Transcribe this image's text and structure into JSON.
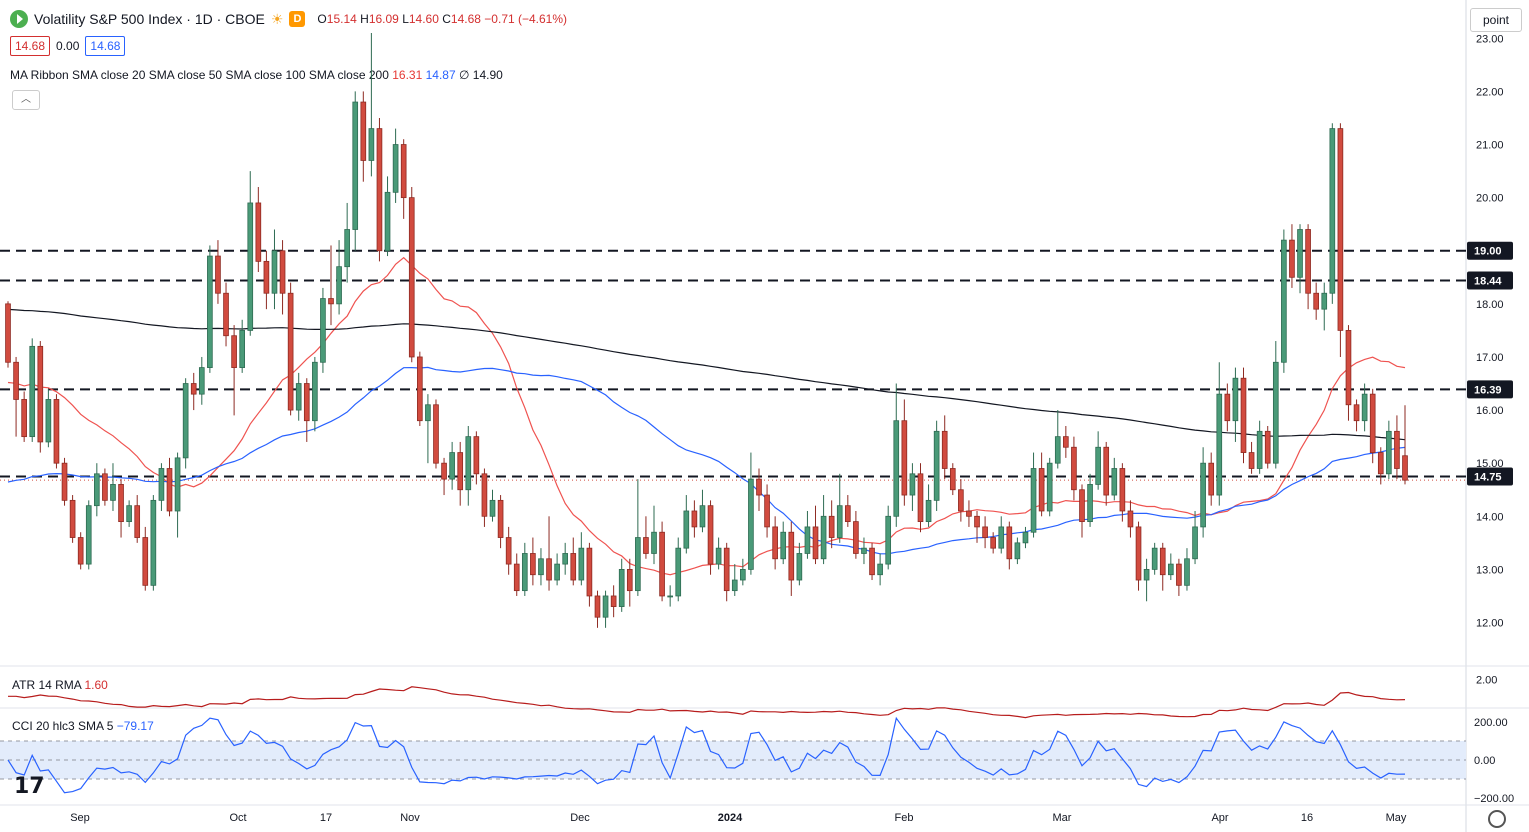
{
  "header": {
    "title": "Volatility S&P 500 Index · 1D · CBOE",
    "badge": "D",
    "o_label": "O",
    "o": "15.14",
    "h_label": "H",
    "h": "16.09",
    "l_label": "L",
    "l": "14.60",
    "c_label": "C",
    "c": "14.68",
    "change": "−0.71 (−4.61%)"
  },
  "price_boxes": {
    "bid": "14.68",
    "spread": "0.00",
    "ask": "14.68"
  },
  "ma_ribbon": {
    "label": "MA Ribbon SMA close 20 SMA close 50 SMA close 100 SMA close 200",
    "v1": "16.31",
    "v2": "14.87",
    "v3": "∅",
    "v4": "14.90"
  },
  "atr": {
    "label": "ATR 14 RMA",
    "value": "1.60"
  },
  "cci": {
    "label": "CCI 20 hlc3 SMA 5",
    "value": "−79.17"
  },
  "toolbar": {
    "point_label": "point"
  },
  "colors": {
    "up": "#4a9a78",
    "down": "#d14b3f",
    "sma20": "#ef5350",
    "sma50": "#2962ff",
    "sma200": "#131722",
    "atr": "#b71c1c",
    "cci": "#2962ff",
    "cci_band": "#e3ecfb"
  },
  "chart_data": {
    "type": "candlestick",
    "price_axis": {
      "ticks": [
        "23.00",
        "22.00",
        "21.00",
        "20.00",
        "19.00",
        "18.00",
        "17.00",
        "16.00",
        "15.00",
        "14.00",
        "13.00",
        "12.00"
      ],
      "ylim": [
        11.2,
        23.1
      ]
    },
    "x_labels": [
      "Sep",
      "Oct",
      "17",
      "Nov",
      "Dec",
      "2024",
      "Feb",
      "Mar",
      "Apr",
      "16",
      "May"
    ],
    "horizontal_levels": [
      "19.00",
      "18.44",
      "16.39",
      "14.75"
    ],
    "last_price": 14.68,
    "candles": [
      [
        18.0,
        16.9,
        18.05,
        16.8
      ],
      [
        16.9,
        16.2,
        17.0,
        15.5
      ],
      [
        16.2,
        15.5,
        16.35,
        15.4
      ],
      [
        15.5,
        17.2,
        17.35,
        15.4
      ],
      [
        17.2,
        15.4,
        17.3,
        15.2
      ],
      [
        15.4,
        16.2,
        16.4,
        15.3
      ],
      [
        16.2,
        15.0,
        16.3,
        14.9
      ],
      [
        15.0,
        14.3,
        15.1,
        14.2
      ],
      [
        14.3,
        13.6,
        14.4,
        13.5
      ],
      [
        13.6,
        13.1,
        13.7,
        13.0
      ],
      [
        13.1,
        14.2,
        14.3,
        13.0
      ],
      [
        14.2,
        14.8,
        15.0,
        14.0
      ],
      [
        14.8,
        14.3,
        14.9,
        14.2
      ],
      [
        14.3,
        14.6,
        15.0,
        14.1
      ],
      [
        14.6,
        13.9,
        14.7,
        13.6
      ],
      [
        13.9,
        14.2,
        14.3,
        13.8
      ],
      [
        14.2,
        13.6,
        14.4,
        13.5
      ],
      [
        13.6,
        12.7,
        13.8,
        12.6
      ],
      [
        12.7,
        14.3,
        14.4,
        12.6
      ],
      [
        14.3,
        14.9,
        15.0,
        14.1
      ],
      [
        14.9,
        14.1,
        15.1,
        14.0
      ],
      [
        14.1,
        15.1,
        15.2,
        13.6
      ],
      [
        15.1,
        16.5,
        16.6,
        14.9
      ],
      [
        16.5,
        16.3,
        16.7,
        16.0
      ],
      [
        16.3,
        16.8,
        17.0,
        16.1
      ],
      [
        16.8,
        18.9,
        19.1,
        16.7
      ],
      [
        18.9,
        18.2,
        19.2,
        18.0
      ],
      [
        18.2,
        17.4,
        18.4,
        17.2
      ],
      [
        17.4,
        16.8,
        17.6,
        15.9
      ],
      [
        16.8,
        17.5,
        17.7,
        16.7
      ],
      [
        17.5,
        19.9,
        20.5,
        17.4
      ],
      [
        19.9,
        18.8,
        20.2,
        18.6
      ],
      [
        18.8,
        18.2,
        19.0,
        17.9
      ],
      [
        18.2,
        19.0,
        19.4,
        17.9
      ],
      [
        19.0,
        18.2,
        19.2,
        17.8
      ],
      [
        18.2,
        16.0,
        18.4,
        15.9
      ],
      [
        16.0,
        16.5,
        16.7,
        15.8
      ],
      [
        16.5,
        15.8,
        16.6,
        15.4
      ],
      [
        15.8,
        16.9,
        17.0,
        15.6
      ],
      [
        16.9,
        18.1,
        18.3,
        16.7
      ],
      [
        18.1,
        18.0,
        19.1,
        17.6
      ],
      [
        18.0,
        18.7,
        19.2,
        17.8
      ],
      [
        18.7,
        19.4,
        19.9,
        18.4
      ],
      [
        19.4,
        21.8,
        22.0,
        19.0
      ],
      [
        21.8,
        20.7,
        22.0,
        20.3
      ],
      [
        20.7,
        21.3,
        23.1,
        20.4
      ],
      [
        21.3,
        19.0,
        21.5,
        18.8
      ],
      [
        19.0,
        20.1,
        20.4,
        18.9
      ],
      [
        20.1,
        21.0,
        21.3,
        19.9
      ],
      [
        21.0,
        20.0,
        21.1,
        19.6
      ],
      [
        20.0,
        17.0,
        20.2,
        16.9
      ],
      [
        17.0,
        15.8,
        17.1,
        15.7
      ],
      [
        15.8,
        16.1,
        16.3,
        15.0
      ],
      [
        16.1,
        15.0,
        16.2,
        14.9
      ],
      [
        15.0,
        14.7,
        15.1,
        14.4
      ],
      [
        14.7,
        15.2,
        15.4,
        14.5
      ],
      [
        15.2,
        14.5,
        15.4,
        14.2
      ],
      [
        14.5,
        15.5,
        15.7,
        14.2
      ],
      [
        15.5,
        14.8,
        15.6,
        14.6
      ],
      [
        14.8,
        14.0,
        14.9,
        13.8
      ],
      [
        14.0,
        14.3,
        14.5,
        13.9
      ],
      [
        14.3,
        13.6,
        14.4,
        13.4
      ],
      [
        13.6,
        13.1,
        13.8,
        12.9
      ],
      [
        13.1,
        12.6,
        13.3,
        12.5
      ],
      [
        12.6,
        13.3,
        13.5,
        12.5
      ],
      [
        13.3,
        12.9,
        13.6,
        12.7
      ],
      [
        12.9,
        13.2,
        13.4,
        12.7
      ],
      [
        13.2,
        12.8,
        14.0,
        12.6
      ],
      [
        12.8,
        13.1,
        13.3,
        12.7
      ],
      [
        13.1,
        13.3,
        13.5,
        12.9
      ],
      [
        13.3,
        12.8,
        13.6,
        12.7
      ],
      [
        12.8,
        13.4,
        13.7,
        12.7
      ],
      [
        13.4,
        12.5,
        13.5,
        12.3
      ],
      [
        12.5,
        12.1,
        12.6,
        11.9
      ],
      [
        12.1,
        12.5,
        12.6,
        11.9
      ],
      [
        12.5,
        12.3,
        12.7,
        12.1
      ],
      [
        12.3,
        13.0,
        13.2,
        12.2
      ],
      [
        13.0,
        12.6,
        13.2,
        12.3
      ],
      [
        12.6,
        13.6,
        14.7,
        12.5
      ],
      [
        13.6,
        13.3,
        14.0,
        13.2
      ],
      [
        13.3,
        13.7,
        14.2,
        13.1
      ],
      [
        13.7,
        12.5,
        13.9,
        12.4
      ],
      [
        12.5,
        12.5,
        12.7,
        12.3
      ],
      [
        12.5,
        13.4,
        13.6,
        12.4
      ],
      [
        13.4,
        14.1,
        14.4,
        13.3
      ],
      [
        14.1,
        13.8,
        14.3,
        13.6
      ],
      [
        13.8,
        14.2,
        14.5,
        13.7
      ],
      [
        14.2,
        13.1,
        14.3,
        12.9
      ],
      [
        13.1,
        13.4,
        13.6,
        13.0
      ],
      [
        13.4,
        12.6,
        13.5,
        12.4
      ],
      [
        12.6,
        12.8,
        13.1,
        12.5
      ],
      [
        12.8,
        13.0,
        13.2,
        12.7
      ],
      [
        13.0,
        14.7,
        15.2,
        12.9
      ],
      [
        14.7,
        14.4,
        14.9,
        14.1
      ],
      [
        14.4,
        13.8,
        14.6,
        13.6
      ],
      [
        13.8,
        13.2,
        14.0,
        13.0
      ],
      [
        13.2,
        13.7,
        13.9,
        13.1
      ],
      [
        13.7,
        12.8,
        13.9,
        12.5
      ],
      [
        12.8,
        13.3,
        13.5,
        12.7
      ],
      [
        13.3,
        13.8,
        14.1,
        13.2
      ],
      [
        13.8,
        13.2,
        14.2,
        13.1
      ],
      [
        13.2,
        14.0,
        14.4,
        13.1
      ],
      [
        14.0,
        13.6,
        14.3,
        13.4
      ],
      [
        13.6,
        14.2,
        14.8,
        13.5
      ],
      [
        14.2,
        13.9,
        14.4,
        13.8
      ],
      [
        13.9,
        13.3,
        14.1,
        13.2
      ],
      [
        13.3,
        13.4,
        13.6,
        13.1
      ],
      [
        13.4,
        12.9,
        13.5,
        12.8
      ],
      [
        12.9,
        13.1,
        13.3,
        12.7
      ],
      [
        13.1,
        14.0,
        14.2,
        13.0
      ],
      [
        14.0,
        15.8,
        16.5,
        13.8
      ],
      [
        15.8,
        14.4,
        16.2,
        14.2
      ],
      [
        14.4,
        14.8,
        15.0,
        14.1
      ],
      [
        14.8,
        13.9,
        15.0,
        13.7
      ],
      [
        13.9,
        14.3,
        14.6,
        13.8
      ],
      [
        14.3,
        15.6,
        15.8,
        14.1
      ],
      [
        15.6,
        14.9,
        15.9,
        14.7
      ],
      [
        14.9,
        14.5,
        15.0,
        14.4
      ],
      [
        14.5,
        14.1,
        14.7,
        13.9
      ],
      [
        14.1,
        14.0,
        14.3,
        13.8
      ],
      [
        14.0,
        13.8,
        14.1,
        13.5
      ],
      [
        13.8,
        13.6,
        14.0,
        13.4
      ],
      [
        13.6,
        13.4,
        13.7,
        13.3
      ],
      [
        13.4,
        13.8,
        14.0,
        13.3
      ],
      [
        13.8,
        13.2,
        13.9,
        13.0
      ],
      [
        13.2,
        13.5,
        13.6,
        13.1
      ],
      [
        13.5,
        13.7,
        13.8,
        13.4
      ],
      [
        13.7,
        14.9,
        15.2,
        13.6
      ],
      [
        14.9,
        14.1,
        15.2,
        14.0
      ],
      [
        14.1,
        15.0,
        15.1,
        14.0
      ],
      [
        15.0,
        15.5,
        16.0,
        14.9
      ],
      [
        15.5,
        15.3,
        15.7,
        15.1
      ],
      [
        15.3,
        14.5,
        15.5,
        14.3
      ],
      [
        14.5,
        13.9,
        14.6,
        13.6
      ],
      [
        13.9,
        14.6,
        14.8,
        13.8
      ],
      [
        14.6,
        15.3,
        15.6,
        14.5
      ],
      [
        15.3,
        14.4,
        15.4,
        14.2
      ],
      [
        14.4,
        14.9,
        15.1,
        14.3
      ],
      [
        14.9,
        14.1,
        15.0,
        13.9
      ],
      [
        14.1,
        13.8,
        14.3,
        13.6
      ],
      [
        13.8,
        12.8,
        13.9,
        12.6
      ],
      [
        12.8,
        13.0,
        13.2,
        12.4
      ],
      [
        13.0,
        13.4,
        13.5,
        12.9
      ],
      [
        13.4,
        12.9,
        13.5,
        12.6
      ],
      [
        12.9,
        13.1,
        13.3,
        12.8
      ],
      [
        13.1,
        12.7,
        13.2,
        12.5
      ],
      [
        12.7,
        13.2,
        13.4,
        12.6
      ],
      [
        13.2,
        13.8,
        14.1,
        13.1
      ],
      [
        13.8,
        15.0,
        15.3,
        13.6
      ],
      [
        15.0,
        14.4,
        15.2,
        14.2
      ],
      [
        14.4,
        16.3,
        16.9,
        14.2
      ],
      [
        16.3,
        15.8,
        16.5,
        15.6
      ],
      [
        15.8,
        16.6,
        16.8,
        15.4
      ],
      [
        16.6,
        15.2,
        16.8,
        15.0
      ],
      [
        15.2,
        14.9,
        15.4,
        14.8
      ],
      [
        14.9,
        15.6,
        15.8,
        14.8
      ],
      [
        15.6,
        15.0,
        15.7,
        14.9
      ],
      [
        15.0,
        16.9,
        17.3,
        14.9
      ],
      [
        16.9,
        19.2,
        19.4,
        16.7
      ],
      [
        19.2,
        18.5,
        19.5,
        18.3
      ],
      [
        18.5,
        19.4,
        19.5,
        18.2
      ],
      [
        19.4,
        18.2,
        19.5,
        17.9
      ],
      [
        18.2,
        17.9,
        18.4,
        17.7
      ],
      [
        17.9,
        18.2,
        18.4,
        17.5
      ],
      [
        18.2,
        21.3,
        21.4,
        18.0
      ],
      [
        21.3,
        17.5,
        21.4,
        17.0
      ],
      [
        17.5,
        16.1,
        17.6,
        15.8
      ],
      [
        16.1,
        15.8,
        16.2,
        15.6
      ],
      [
        15.8,
        16.3,
        16.5,
        15.6
      ],
      [
        16.3,
        15.2,
        16.4,
        15.0
      ],
      [
        15.2,
        14.8,
        15.3,
        14.6
      ],
      [
        14.8,
        15.6,
        15.8,
        14.7
      ],
      [
        15.6,
        14.9,
        15.9,
        14.7
      ],
      [
        15.14,
        14.68,
        16.09,
        14.6
      ]
    ]
  }
}
